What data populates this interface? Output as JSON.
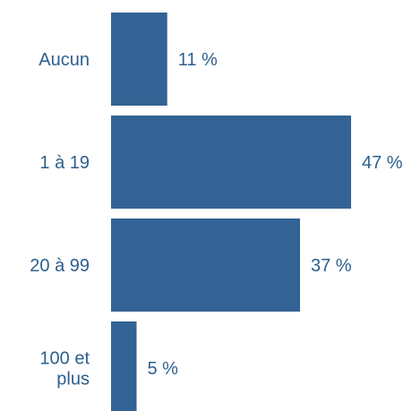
{
  "chart_data": {
    "type": "bar",
    "orientation": "horizontal",
    "categories": [
      [
        "Aucun"
      ],
      [
        "1 à 19"
      ],
      [
        "20 à 99"
      ],
      [
        "100 et",
        "plus"
      ]
    ],
    "values": [
      11,
      47,
      37,
      5
    ],
    "value_labels": [
      "11 %",
      "47 %",
      "37 %",
      "5 %"
    ],
    "xlim": [
      0,
      47
    ],
    "unit": "%",
    "grid": false,
    "legend": "none",
    "colors": {
      "bar": "#336394",
      "text": "#2c5f8e"
    }
  }
}
